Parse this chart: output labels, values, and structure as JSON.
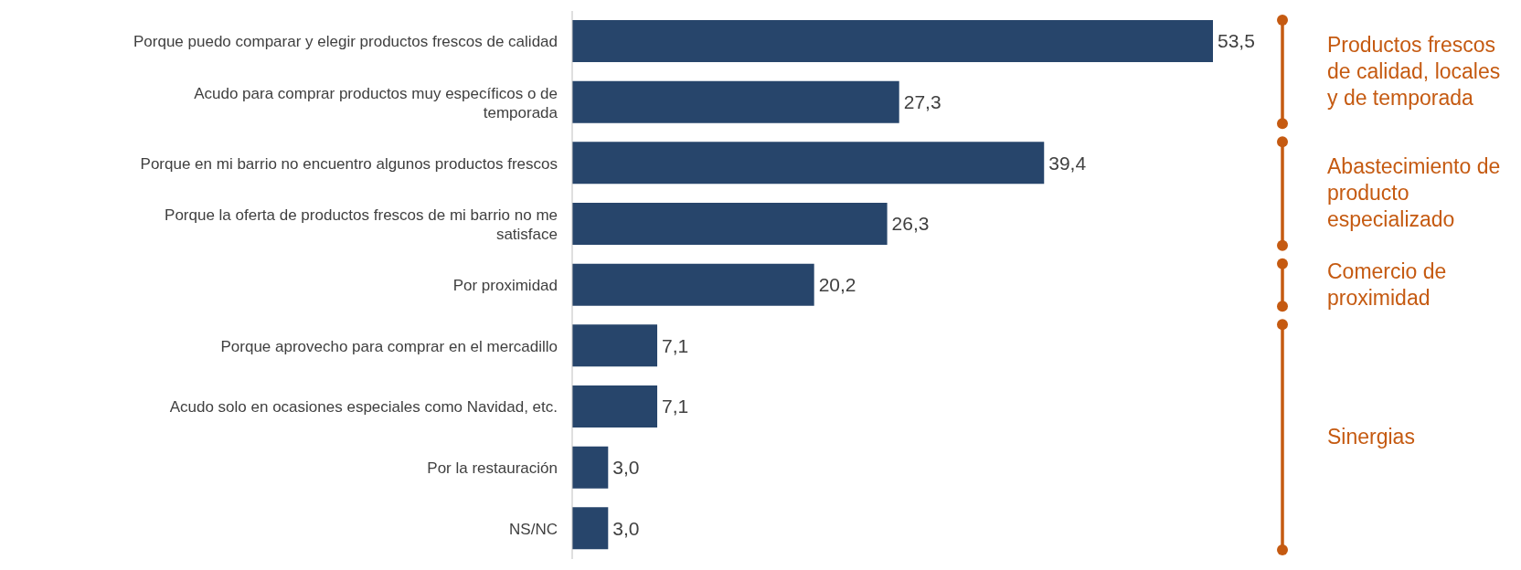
{
  "chart_data": {
    "type": "bar",
    "orientation": "horizontal",
    "categories": [
      "Porque puedo comparar y elegir productos frescos de calidad",
      "Acudo para comprar productos muy específicos o de temporada",
      "Porque en mi barrio no encuentro algunos productos frescos",
      "Porque la oferta de productos frescos de mi barrio no me satisface",
      "Por proximidad",
      "Porque aprovecho para comprar en el mercadillo",
      "Acudo solo en ocasiones especiales como Navidad, etc.",
      "Por la restauración",
      "NS/NC"
    ],
    "values": [
      53.5,
      27.3,
      39.4,
      26.3,
      20.2,
      7.1,
      7.1,
      3.0,
      3.0
    ],
    "value_labels": [
      "53,5",
      "27,3",
      "39,4",
      "26,3",
      "20,2",
      "7,1",
      "7,1",
      "3,0",
      "3,0"
    ],
    "color": "#27456b",
    "annotations": [
      "Productos frescos de calidad, locales y de temporada",
      "Abastecimiento de producto especializado",
      "Comercio de proximidad",
      "Sinergias"
    ],
    "grid": false,
    "legend": false
  }
}
